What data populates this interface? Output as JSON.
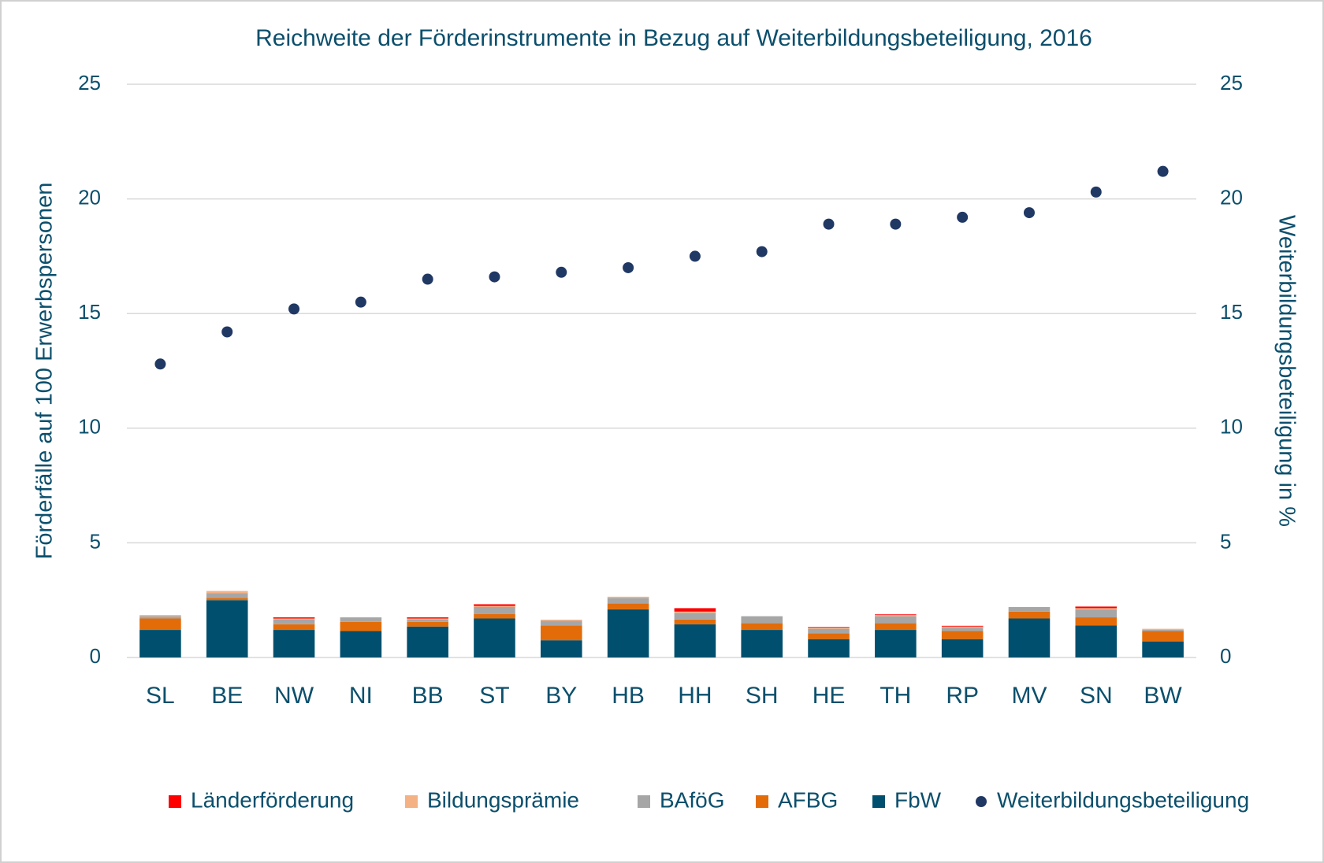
{
  "chart_data": {
    "type": "bar",
    "stacked": true,
    "title": "Reichweite der Förderinstrumente in Bezug auf Weiterbildungsbeteiligung, 2016",
    "ylabel": "Förderfälle auf 100 Erwerbspersonen",
    "y2label": "Weiterbildungsbeteiligung in %",
    "categories": [
      "SL",
      "BE",
      "NW",
      "NI",
      "BB",
      "ST",
      "BY",
      "HB",
      "HH",
      "SH",
      "HE",
      "TH",
      "RP",
      "MV",
      "SN",
      "BW"
    ],
    "series": [
      {
        "name": "Länderförderung",
        "color": "#ff0000",
        "values": [
          0,
          0,
          0.05,
          0,
          0.05,
          0.07,
          0,
          0,
          0.15,
          0,
          0.03,
          0.03,
          0.03,
          0,
          0.07,
          0
        ]
      },
      {
        "name": "Bildungsprämie",
        "color": "#f4b183",
        "values": [
          0.05,
          0.1,
          0.05,
          0,
          0.05,
          0.05,
          0.05,
          0.05,
          0.05,
          0,
          0.05,
          0.05,
          0.05,
          0,
          0.05,
          0.05
        ]
      },
      {
        "name": "BAföG",
        "color": "#a6a6a6",
        "values": [
          0.1,
          0.2,
          0.2,
          0.2,
          0.1,
          0.3,
          0.2,
          0.25,
          0.3,
          0.3,
          0.2,
          0.3,
          0.15,
          0.2,
          0.35,
          0.05
        ]
      },
      {
        "name": "AFBG",
        "color": "#e36c09",
        "values": [
          0.5,
          0.1,
          0.25,
          0.4,
          0.2,
          0.2,
          0.65,
          0.25,
          0.2,
          0.3,
          0.25,
          0.3,
          0.35,
          0.3,
          0.35,
          0.45
        ]
      },
      {
        "name": "FbW",
        "color": "#004f6e",
        "values": [
          1.2,
          2.5,
          1.2,
          1.15,
          1.35,
          1.7,
          0.75,
          2.1,
          1.45,
          1.2,
          0.8,
          1.2,
          0.8,
          1.7,
          1.4,
          0.7
        ]
      },
      {
        "name": "Weiterbildungsbeteiligung",
        "type": "scatter",
        "axis": "y2",
        "color": "#203864",
        "values": [
          12.8,
          14.2,
          15.2,
          15.5,
          16.5,
          16.6,
          16.8,
          17.0,
          17.5,
          17.7,
          18.9,
          18.9,
          19.2,
          19.4,
          20.3,
          21.2
        ]
      }
    ],
    "ylim": [
      0,
      25
    ],
    "yticks": [
      0,
      5,
      10,
      15,
      20,
      25
    ],
    "y2lim": [
      0,
      25
    ],
    "y2ticks": [
      0,
      5,
      10,
      15,
      20,
      25
    ],
    "grid": true,
    "legend": "bottom"
  }
}
